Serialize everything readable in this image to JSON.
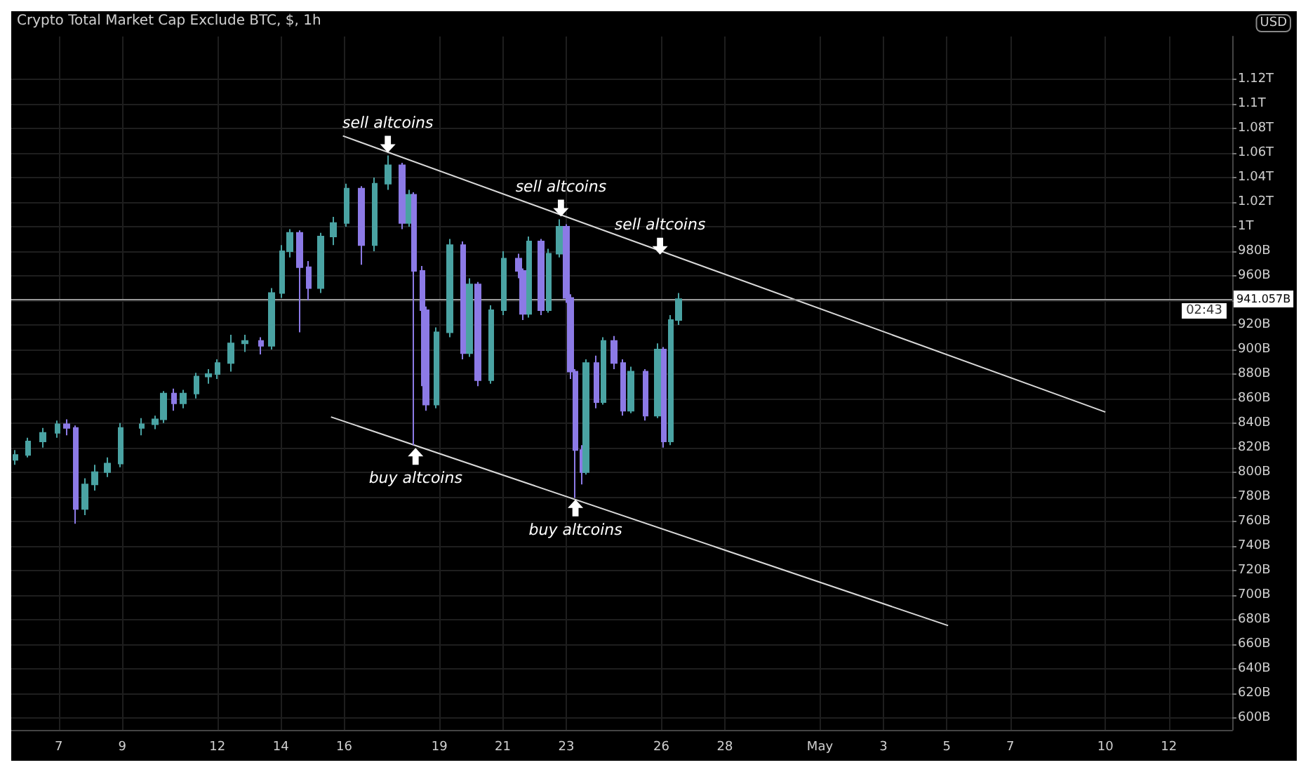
{
  "chart_data": {
    "type": "candlestick",
    "title": "Crypto Total Market Cap Exclude BTC, $, 1h",
    "x": [
      "--04-05T15:00",
      "--04-06T01:00",
      "--04-06T12:00",
      "--04-06T23:00",
      "--04-07T06:00",
      "--04-07T13:00",
      "--04-07T20:00",
      "--04-08T03:00",
      "--04-08T13:00",
      "--04-08T23:00",
      "--04-09T15:00",
      "--04-10T01:00",
      "--04-10T07:00",
      "--04-10T15:00",
      "--04-10T22:00",
      "--04-11T08:00",
      "--04-11T17:00",
      "--04-12T00:00",
      "--04-12T10:00",
      "--04-12T21:00",
      "--04-13T09:00",
      "--04-13T17:00",
      "--04-14T01:00",
      "--04-14T07:00",
      "--04-14T14:00",
      "--04-14T21:00",
      "--04-15T06:00",
      "--04-15T16:00",
      "--04-16T02:00",
      "--04-16T13:00",
      "--04-16T23:00",
      "--04-17T09:00",
      "--04-17T20:00",
      "--04-18T01:00",
      "--04-18T05:00",
      "--04-18T11:00",
      "--04-18T14:00",
      "--04-18T22:00",
      "--04-19T08:00",
      "--04-19T18:00",
      "--04-19T23:00",
      "--04-20T05:00",
      "--04-20T15:00",
      "--04-21T01:00",
      "--04-21T12:00",
      "--04-21T15:00",
      "--04-21T20:00",
      "--04-22T05:00",
      "--04-22T11:00",
      "--04-22T19:00",
      "--04-23T00:00",
      "--04-23T03:00",
      "--04-23T07:00",
      "--04-23T12:00",
      "--04-23T15:00",
      "--04-23T23:00",
      "--04-24T04:00",
      "--04-24T12:00",
      "--04-24T19:00",
      "--04-25T01:00",
      "--04-25T12:00",
      "--04-25T21:00",
      "--04-26T02:00",
      "--04-26T07:00",
      "--04-26T13:00"
    ],
    "ohlc": [
      [
        810000000000.0,
        818000000000.0,
        806000000000.0,
        814000000000.0
      ],
      [
        814000000000.0,
        828000000000.0,
        812000000000.0,
        825000000000.0
      ],
      [
        825000000000.0,
        836000000000.0,
        820000000000.0,
        832000000000.0
      ],
      [
        832000000000.0,
        842000000000.0,
        828000000000.0,
        839000000000.0
      ],
      [
        839000000000.0,
        843000000000.0,
        830000000000.0,
        836000000000.0
      ],
      [
        836000000000.0,
        838000000000.0,
        758000000000.0,
        770000000000.0
      ],
      [
        770000000000.0,
        795000000000.0,
        765000000000.0,
        790000000000.0
      ],
      [
        790000000000.0,
        806000000000.0,
        785000000000.0,
        800000000000.0
      ],
      [
        800000000000.0,
        812000000000.0,
        796000000000.0,
        807000000000.0
      ],
      [
        807000000000.0,
        840000000000.0,
        804000000000.0,
        836000000000.0
      ],
      [
        836000000000.0,
        844000000000.0,
        830000000000.0,
        839000000000.0
      ],
      [
        839000000000.0,
        846000000000.0,
        835000000000.0,
        843000000000.0
      ],
      [
        843000000000.0,
        866000000000.0,
        840000000000.0,
        864000000000.0
      ],
      [
        864000000000.0,
        868000000000.0,
        850000000000.0,
        856000000000.0
      ],
      [
        856000000000.0,
        867000000000.0,
        852000000000.0,
        864000000000.0
      ],
      [
        864000000000.0,
        881000000000.0,
        860000000000.0,
        878000000000.0
      ],
      [
        878000000000.0,
        884000000000.0,
        872000000000.0,
        880000000000.0
      ],
      [
        880000000000.0,
        892000000000.0,
        876000000000.0,
        889000000000.0
      ],
      [
        889000000000.0,
        912000000000.0,
        882000000000.0,
        905000000000.0
      ],
      [
        905000000000.0,
        912000000000.0,
        898000000000.0,
        907000000000.0
      ],
      [
        907000000000.0,
        910000000000.0,
        896000000000.0,
        903000000000.0
      ],
      [
        903000000000.0,
        950000000000.0,
        900000000000.0,
        946000000000.0
      ],
      [
        946000000000.0,
        985000000000.0,
        942000000000.0,
        980000000000.0
      ],
      [
        980000000000.0,
        998000000000.0,
        975000000000.0,
        995000000000.0
      ],
      [
        995000000000.0,
        997000000000.0,
        914000000000.0,
        967000000000.0
      ],
      [
        967000000000.0,
        972000000000.0,
        940000000000.0,
        950000000000.0
      ],
      [
        950000000000.0,
        995000000000.0,
        946000000000.0,
        992000000000.0
      ],
      [
        992000000000.0,
        1008000000000.0,
        985000000000.0,
        1003000000000.0
      ],
      [
        1003000000000.0,
        1035000000000.0,
        1000000000000.0,
        1031000000000.0
      ],
      [
        1031000000000.0,
        1033000000000.0,
        969000000000.0,
        985000000000.0
      ],
      [
        985000000000.0,
        1040000000000.0,
        980000000000.0,
        1035000000000.0
      ],
      [
        1035000000000.0,
        1058000000000.0,
        1030000000000.0,
        1050000000000.0
      ],
      [
        1050000000000.0,
        1052000000000.0,
        998000000000.0,
        1003000000000.0
      ],
      [
        1003000000000.0,
        1030000000000.0,
        1000000000000.0,
        1026000000000.0
      ],
      [
        1026000000000.0,
        1028000000000.0,
        822000000000.0,
        964000000000.0
      ],
      [
        964000000000.0,
        968000000000.0,
        870000000000.0,
        932000000000.0
      ],
      [
        932000000000.0,
        935000000000.0,
        850000000000.0,
        855000000000.0
      ],
      [
        855000000000.0,
        918000000000.0,
        852000000000.0,
        914000000000.0
      ],
      [
        914000000000.0,
        990000000000.0,
        910000000000.0,
        985000000000.0
      ],
      [
        985000000000.0,
        988000000000.0,
        892000000000.0,
        897000000000.0
      ],
      [
        897000000000.0,
        958000000000.0,
        894000000000.0,
        953000000000.0
      ],
      [
        953000000000.0,
        955000000000.0,
        870000000000.0,
        875000000000.0
      ],
      [
        875000000000.0,
        936000000000.0,
        872000000000.0,
        932000000000.0
      ],
      [
        932000000000.0,
        980000000000.0,
        928000000000.0,
        974000000000.0
      ],
      [
        974000000000.0,
        978000000000.0,
        958000000000.0,
        964000000000.0
      ],
      [
        964000000000.0,
        966000000000.0,
        924000000000.0,
        929000000000.0
      ],
      [
        929000000000.0,
        992000000000.0,
        926000000000.0,
        988000000000.0
      ],
      [
        988000000000.0,
        990000000000.0,
        928000000000.0,
        932000000000.0
      ],
      [
        932000000000.0,
        982000000000.0,
        930000000000.0,
        978000000000.0
      ],
      [
        978000000000.0,
        1006000000000.0,
        975000000000.0,
        1000000000000.0
      ],
      [
        1000000000000.0,
        1002000000000.0,
        938000000000.0,
        942000000000.0
      ],
      [
        942000000000.0,
        945000000000.0,
        876000000000.0,
        882000000000.0
      ],
      [
        882000000000.0,
        884000000000.0,
        779000000000.0,
        818000000000.0
      ],
      [
        818000000000.0,
        822000000000.0,
        790000000000.0,
        800000000000.0
      ],
      [
        800000000000.0,
        892000000000.0,
        798000000000.0,
        889000000000.0
      ],
      [
        889000000000.0,
        895000000000.0,
        852000000000.0,
        857000000000.0
      ],
      [
        857000000000.0,
        910000000000.0,
        855000000000.0,
        907000000000.0
      ],
      [
        907000000000.0,
        911000000000.0,
        884000000000.0,
        889000000000.0
      ],
      [
        889000000000.0,
        892000000000.0,
        846000000000.0,
        850000000000.0
      ],
      [
        850000000000.0,
        886000000000.0,
        848000000000.0,
        882000000000.0
      ],
      [
        882000000000.0,
        884000000000.0,
        842000000000.0,
        846000000000.0
      ],
      [
        846000000000.0,
        905000000000.0,
        844000000000.0,
        900000000000.0
      ],
      [
        900000000000.0,
        902000000000.0,
        820000000000.0,
        825000000000.0
      ],
      [
        825000000000.0,
        928000000000.0,
        822000000000.0,
        924000000000.0
      ],
      [
        924000000000.0,
        946000000000.0,
        920000000000.0,
        941000000000.0
      ]
    ],
    "colors": [
      "#4aa3a3",
      "#4aa3a3",
      "#4aa3a3",
      "#4aa3a3",
      "#8c7ae6",
      "#8c7ae6",
      "#4aa3a3",
      "#4aa3a3",
      "#4aa3a3",
      "#4aa3a3",
      "#4aa3a3",
      "#4aa3a3",
      "#4aa3a3",
      "#8c7ae6",
      "#4aa3a3",
      "#4aa3a3",
      "#4aa3a3",
      "#4aa3a3",
      "#4aa3a3",
      "#4aa3a3",
      "#8c7ae6",
      "#4aa3a3",
      "#4aa3a3",
      "#4aa3a3",
      "#8c7ae6",
      "#8c7ae6",
      "#4aa3a3",
      "#4aa3a3",
      "#4aa3a3",
      "#8c7ae6",
      "#4aa3a3",
      "#4aa3a3",
      "#8c7ae6",
      "#4aa3a3",
      "#8c7ae6",
      "#8c7ae6",
      "#8c7ae6",
      "#4aa3a3",
      "#4aa3a3",
      "#8c7ae6",
      "#4aa3a3",
      "#8c7ae6",
      "#4aa3a3",
      "#4aa3a3",
      "#8c7ae6",
      "#8c7ae6",
      "#4aa3a3",
      "#8c7ae6",
      "#4aa3a3",
      "#4aa3a3",
      "#8c7ae6",
      "#8c7ae6",
      "#8c7ae6",
      "#8c7ae6",
      "#4aa3a3",
      "#8c7ae6",
      "#4aa3a3",
      "#8c7ae6",
      "#8c7ae6",
      "#4aa3a3",
      "#8c7ae6",
      "#4aa3a3",
      "#8c7ae6",
      "#4aa3a3",
      "#4aa3a3"
    ],
    "series": [
      {
        "type": "line",
        "color": "#d9d9d9",
        "x": [
          "--04-15T23:00",
          "--05-10T00:00"
        ],
        "values": [
          1074000000000.0,
          849000000000.0
        ]
      },
      {
        "type": "line",
        "color": "#d9d9d9",
        "x": [
          "--04-15T14:00",
          "--05-05T01:00"
        ],
        "values": [
          845000000000.0,
          675000000000.0
        ]
      }
    ],
    "xlim": [
      "--04-05T12:00",
      "--05-14T00:00"
    ],
    "xticks": [
      {
        "value": "--04-07",
        "label": "7"
      },
      {
        "value": "--04-09",
        "label": "9"
      },
      {
        "value": "--04-12",
        "label": "12"
      },
      {
        "value": "--04-14",
        "label": "14"
      },
      {
        "value": "--04-16",
        "label": "16"
      },
      {
        "value": "--04-19",
        "label": "19"
      },
      {
        "value": "--04-21",
        "label": "21"
      },
      {
        "value": "--04-23",
        "label": "23"
      },
      {
        "value": "--04-26",
        "label": "26"
      },
      {
        "value": "--04-28",
        "label": "28"
      },
      {
        "value": "--05-01",
        "label": "May"
      },
      {
        "value": "--05-03",
        "label": "3"
      },
      {
        "value": "--05-05",
        "label": "5"
      },
      {
        "value": "--05-07",
        "label": "7"
      },
      {
        "value": "--05-10",
        "label": "10"
      },
      {
        "value": "--05-12",
        "label": "12"
      }
    ],
    "ylim": [
      590000000000.0,
      1155000000000.0
    ],
    "yticks": [
      {
        "value": 600000000000.0,
        "label": "600B"
      },
      {
        "value": 620000000000.0,
        "label": "620B"
      },
      {
        "value": 640000000000.0,
        "label": "640B"
      },
      {
        "value": 660000000000.0,
        "label": "660B"
      },
      {
        "value": 680000000000.0,
        "label": "680B"
      },
      {
        "value": 700000000000.0,
        "label": "700B"
      },
      {
        "value": 720000000000.0,
        "label": "720B"
      },
      {
        "value": 740000000000.0,
        "label": "740B"
      },
      {
        "value": 760000000000.0,
        "label": "760B"
      },
      {
        "value": 780000000000.0,
        "label": "780B"
      },
      {
        "value": 800000000000.0,
        "label": "800B"
      },
      {
        "value": 820000000000.0,
        "label": "820B"
      },
      {
        "value": 840000000000.0,
        "label": "840B"
      },
      {
        "value": 860000000000.0,
        "label": "860B"
      },
      {
        "value": 880000000000.0,
        "label": "880B"
      },
      {
        "value": 900000000000.0,
        "label": "900B"
      },
      {
        "value": 920000000000.0,
        "label": "920B"
      },
      {
        "value": 940000000000.0,
        "label": null
      },
      {
        "value": 960000000000.0,
        "label": "960B"
      },
      {
        "value": 980000000000.0,
        "label": "980B"
      },
      {
        "value": 1000000000000.0,
        "label": "1T"
      },
      {
        "value": 1020000000000.0,
        "label": "1.02T"
      },
      {
        "value": 1040000000000.0,
        "label": "1.04T"
      },
      {
        "value": 1060000000000.0,
        "label": "1.06T"
      },
      {
        "value": 1080000000000.0,
        "label": "1.08T"
      },
      {
        "value": 1100000000000.0,
        "label": "1.1T"
      },
      {
        "value": 1120000000000.0,
        "label": "1.12T"
      }
    ],
    "grid": true,
    "ref_lines": [
      {
        "axis": "y",
        "value": 941057000000.0,
        "label": "941.057B",
        "color": "#9a9a9a"
      }
    ],
    "annotations": [
      {
        "text": "sell altcoins",
        "x": "--04-17T09:00",
        "y": 1058000000000.0
      },
      {
        "text": "sell altcoins",
        "x": "--04-22T20:00",
        "y": 1006000000000.0
      },
      {
        "text": "sell altcoins",
        "x": "--04-25T23:00",
        "y": 975000000000.0
      },
      {
        "text": "buy altcoins",
        "x": "--04-18T06:00",
        "y": 822000000000.0
      },
      {
        "text": "buy altcoins",
        "x": "--04-23T07:00",
        "y": 780000000000.0
      },
      "USD",
      "02:43"
    ]
  }
}
